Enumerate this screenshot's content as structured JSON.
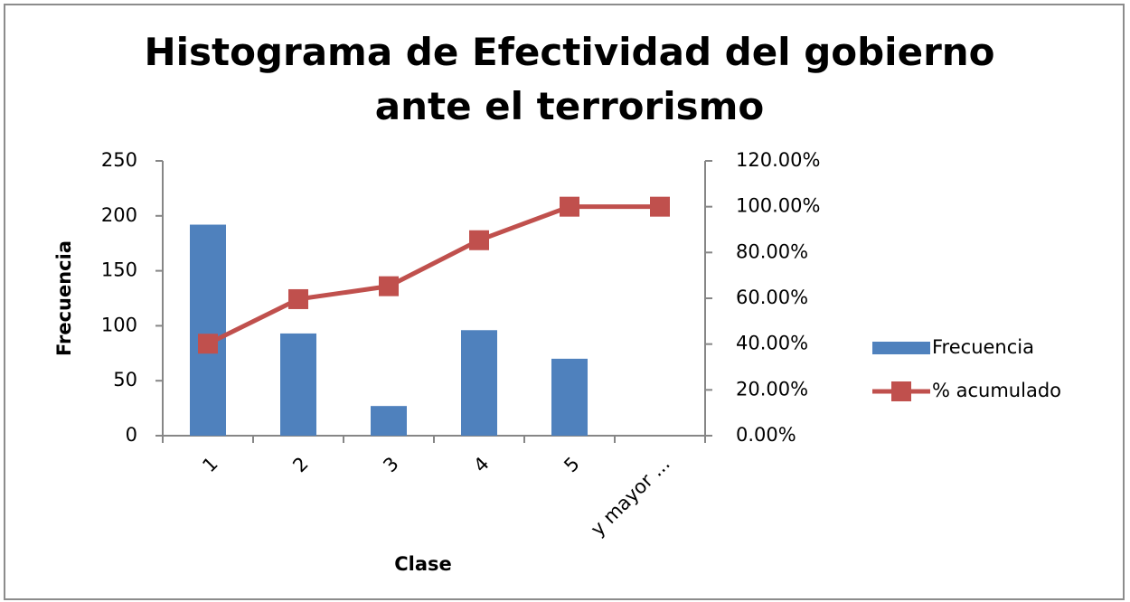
{
  "chart_data": {
    "type": "bar-line",
    "title": "Histograma de Efectividad del gobierno ante el terrorismo",
    "xlabel": "Clase",
    "ylabel": "Frecuencia",
    "categories": [
      "1",
      "2",
      "3",
      "4",
      "5",
      "y mayor ..."
    ],
    "series": [
      {
        "name": "Frecuencia",
        "type": "bar",
        "color": "#4f81bd",
        "values": [
          192,
          93,
          27,
          96,
          70,
          0
        ]
      },
      {
        "name": "% acumulado",
        "type": "line",
        "axis": "y2",
        "color": "#c0504d",
        "values": [
          40.17,
          59.62,
          65.27,
          85.36,
          100,
          100
        ]
      }
    ],
    "ylim": [
      0,
      250
    ],
    "yticks": [
      0,
      50,
      100,
      150,
      200,
      250
    ],
    "y2lim": [
      0,
      120
    ],
    "y2ticks": [
      {
        "value": 0,
        "label": "0.00%"
      },
      {
        "value": 20,
        "label": "20.00%"
      },
      {
        "value": 40,
        "label": "40.00%"
      },
      {
        "value": 60,
        "label": "60.00%"
      },
      {
        "value": 80,
        "label": "80.00%"
      },
      {
        "value": 100,
        "label": "100.00%"
      },
      {
        "value": 120,
        "label": "120.00%"
      }
    ],
    "legend": "right",
    "grid": false
  }
}
